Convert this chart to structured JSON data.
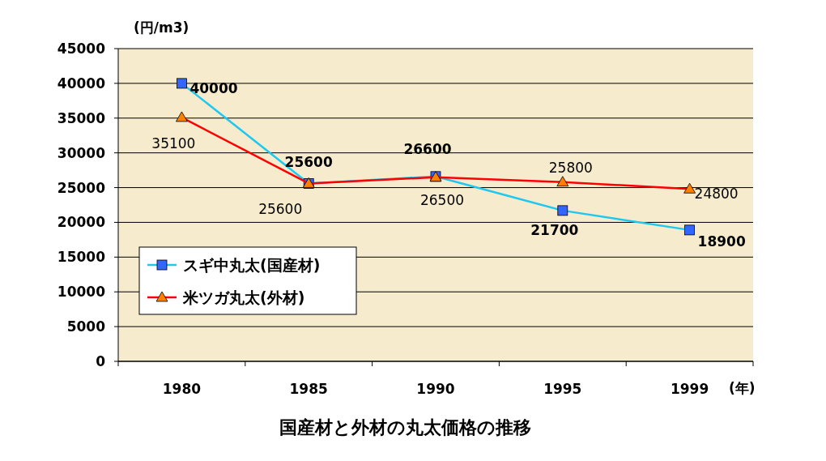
{
  "chart_data": {
    "type": "line",
    "title": "国産材と外材の丸太価格の推移",
    "ylabel": "(円/m3)",
    "xlabel": "(年)",
    "categories": [
      "1980",
      "1985",
      "1990",
      "1995",
      "1999"
    ],
    "series": [
      {
        "name": "スギ中丸太(国産材)",
        "color": "#1ec8f0",
        "colors": [
          "#3366ff",
          "#3366ff",
          "#3366ff",
          "#3366ff",
          "#3366ff"
        ],
        "marker": "square",
        "values": [
          40000,
          25600,
          26600,
          21700,
          18900
        ]
      },
      {
        "name": "米ツガ丸太(外材)",
        "color": "#ff0000",
        "colors": [
          "#ff8000",
          "#ff8000",
          "#ff8000",
          "#ff8000",
          "#ff8000"
        ],
        "marker": "triangle",
        "values": [
          35100,
          25600,
          26500,
          25800,
          24800
        ]
      }
    ],
    "ylim": [
      0,
      45000
    ],
    "yticks": [
      0,
      5000,
      10000,
      15000,
      20000,
      25000,
      30000,
      35000,
      40000,
      45000
    ],
    "grid": "y",
    "legend": "bottom left",
    "data_labels": true,
    "line_style": "solid"
  }
}
